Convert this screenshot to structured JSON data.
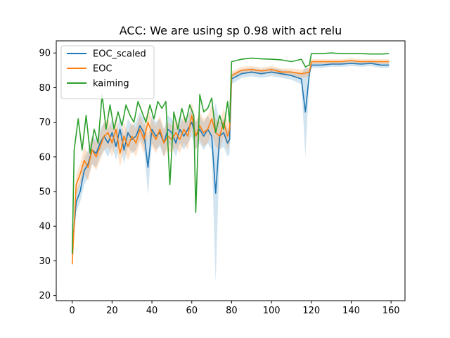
{
  "chart_data": {
    "type": "line",
    "title": "ACC: We are using sp 0.98 with act relu",
    "xlabel": "",
    "ylabel": "",
    "xlim": [
      -8,
      167
    ],
    "ylim": [
      18.5,
      93.5
    ],
    "xticks": [
      0,
      20,
      40,
      60,
      80,
      100,
      120,
      140,
      160
    ],
    "yticks": [
      20,
      30,
      40,
      50,
      60,
      70,
      80,
      90
    ],
    "grid": false,
    "legend_position": "upper-left",
    "series": [
      {
        "name": "EOC_scaled",
        "color": "#1f77b4",
        "band_color": "#1f77b4",
        "x": [
          0,
          2,
          4,
          6,
          8,
          10,
          12,
          14,
          16,
          18,
          20,
          22,
          24,
          26,
          28,
          30,
          32,
          34,
          36,
          38,
          40,
          42,
          44,
          46,
          48,
          50,
          52,
          54,
          56,
          58,
          60,
          62,
          64,
          66,
          68,
          70,
          72,
          74,
          76,
          78,
          79,
          80,
          85,
          90,
          95,
          100,
          105,
          110,
          115,
          117,
          119,
          120,
          125,
          130,
          135,
          140,
          145,
          150,
          155,
          159
        ],
        "values": [
          33,
          47,
          50,
          56,
          58,
          62,
          61,
          64,
          66,
          64,
          67,
          63,
          68,
          62,
          67,
          65,
          66,
          69,
          67,
          57,
          68,
          66,
          67,
          64,
          68,
          67,
          64,
          68,
          66,
          68,
          70,
          66,
          68,
          66,
          68,
          66,
          49.5,
          66,
          67,
          64,
          65,
          82.5,
          84,
          84.5,
          84,
          84.5,
          84,
          83.5,
          82.5,
          73,
          84,
          86.5,
          86.5,
          86.8,
          86.8,
          87,
          86.8,
          87,
          86.5,
          86.5
        ],
        "band_half_width": [
          2,
          3,
          3,
          4,
          4,
          4,
          4,
          4,
          4,
          4,
          4,
          4,
          4,
          4,
          4,
          4,
          4,
          4,
          4,
          8,
          4,
          4,
          4,
          4,
          4,
          4,
          4,
          4,
          4,
          4,
          4,
          4,
          4,
          4,
          4,
          4,
          26,
          4,
          4,
          4,
          4,
          1.5,
          1.2,
          1.2,
          1.2,
          1.2,
          1.2,
          1.2,
          1.5,
          13,
          1.5,
          0.8,
          0.8,
          0.8,
          0.8,
          0.8,
          0.8,
          0.8,
          0.8,
          0.8
        ]
      },
      {
        "name": "EOC",
        "color": "#ff7f0e",
        "band_color": "#ff7f0e",
        "x": [
          0,
          2,
          4,
          6,
          8,
          10,
          12,
          14,
          16,
          18,
          20,
          22,
          24,
          26,
          28,
          30,
          32,
          34,
          36,
          38,
          40,
          42,
          44,
          46,
          48,
          50,
          52,
          54,
          56,
          58,
          60,
          62,
          64,
          66,
          68,
          70,
          72,
          74,
          76,
          78,
          79,
          80,
          85,
          90,
          95,
          100,
          105,
          110,
          115,
          117,
          119,
          120,
          125,
          130,
          135,
          140,
          145,
          150,
          155,
          159
        ],
        "values": [
          29,
          52,
          55,
          59,
          57,
          62,
          60,
          63,
          66,
          67,
          64,
          68,
          61,
          66,
          63,
          66,
          64,
          68,
          65,
          70,
          67,
          65,
          68,
          64,
          66,
          65,
          67,
          65,
          68,
          66,
          72,
          66,
          69,
          67,
          68,
          71,
          67,
          66,
          70,
          66,
          68,
          83.5,
          85,
          85.2,
          84.8,
          85.2,
          84.5,
          84.5,
          84,
          84.2,
          84.5,
          87.5,
          87.5,
          87.5,
          87.5,
          87.8,
          87.5,
          87.5,
          87.5,
          87.5
        ],
        "band_half_width": [
          1.5,
          3,
          3,
          4,
          4,
          4,
          4,
          4,
          4,
          4,
          4,
          4,
          4,
          4,
          4,
          4,
          4,
          4,
          4,
          4,
          4,
          4,
          4,
          4,
          4,
          4,
          4,
          4,
          4,
          4,
          4,
          4,
          4,
          4,
          4,
          4,
          4,
          4,
          4,
          4,
          4,
          1.2,
          1,
          1,
          1,
          1,
          1,
          1,
          1.2,
          1.2,
          1.2,
          0.7,
          0.7,
          0.7,
          0.7,
          0.7,
          0.7,
          0.7,
          0.7,
          0.7
        ]
      },
      {
        "name": "kaiming",
        "color": "#2ca02c",
        "band_color": "#2ca02c",
        "x": [
          0,
          1,
          3,
          5,
          7,
          9,
          11,
          13,
          15,
          17,
          19,
          21,
          23,
          25,
          27,
          29,
          31,
          33,
          35,
          37,
          39,
          41,
          43,
          45,
          47,
          49,
          51,
          53,
          55,
          57,
          59,
          61,
          62,
          64,
          66,
          68,
          70,
          72,
          74,
          76,
          78,
          79,
          80,
          85,
          90,
          95,
          100,
          105,
          110,
          115,
          117,
          119,
          120,
          125,
          130,
          135,
          140,
          145,
          150,
          155,
          159
        ],
        "values": [
          32,
          62,
          71,
          62,
          72,
          61,
          68,
          64,
          78,
          68,
          75,
          68,
          73,
          69,
          75,
          72,
          70,
          76,
          73,
          70,
          75,
          71,
          76,
          74,
          76,
          52,
          73,
          68,
          74,
          70,
          75,
          72,
          44,
          78,
          73,
          74,
          77,
          67,
          72,
          68,
          76,
          70,
          87.5,
          88.2,
          88.5,
          88.3,
          88.2,
          88,
          87.5,
          88.2,
          86,
          86.5,
          89.8,
          89.8,
          90,
          89.8,
          89.8,
          89.8,
          89.7,
          89.7,
          89.8
        ],
        "band_half_width": [
          0,
          0,
          0,
          0,
          0,
          0,
          0,
          0,
          0,
          0,
          0,
          0,
          0,
          0,
          0,
          0,
          0,
          0,
          0,
          0,
          0,
          0,
          0,
          0,
          0,
          0,
          0,
          0,
          0,
          0,
          0,
          0,
          0,
          0,
          0,
          0,
          0,
          0,
          0,
          0,
          0,
          0,
          0,
          0,
          0,
          0,
          0,
          0,
          0,
          0,
          0,
          0,
          0,
          0,
          0,
          0,
          0,
          0,
          0,
          0,
          0
        ]
      }
    ]
  }
}
